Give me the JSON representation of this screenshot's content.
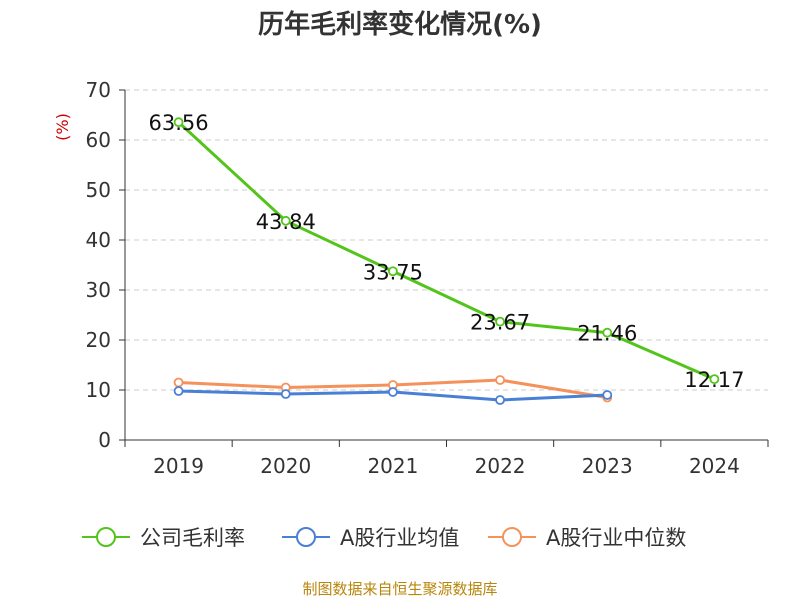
{
  "title": "历年毛利率变化情况(%)",
  "source": "制图数据来自恒生聚源数据库",
  "chart_data": {
    "type": "line",
    "title": "历年毛利率变化情况(%)",
    "ylabel": "(%)",
    "xlabel": "",
    "categories": [
      "2019",
      "2020",
      "2021",
      "2022",
      "2023",
      "2024"
    ],
    "ylim": [
      0,
      70
    ],
    "yticks": [
      0,
      10,
      20,
      30,
      40,
      50,
      60,
      70
    ],
    "grid": true,
    "legend_position": "bottom",
    "series": [
      {
        "name": "公司毛利率",
        "color": "#52c41a",
        "values": [
          63.56,
          43.84,
          33.75,
          23.67,
          21.46,
          12.17
        ],
        "labels": [
          "63.56",
          "43.84",
          "33.75",
          "23.67",
          "21.46",
          "12.17"
        ]
      },
      {
        "name": "A股行业均值",
        "color": "#4a7fd6",
        "values": [
          9.8,
          9.2,
          9.6,
          8.0,
          9.0,
          null
        ]
      },
      {
        "name": "A股行业中位数",
        "color": "#f5915a",
        "values": [
          11.5,
          10.5,
          11.0,
          12.0,
          8.5,
          null
        ]
      }
    ]
  }
}
